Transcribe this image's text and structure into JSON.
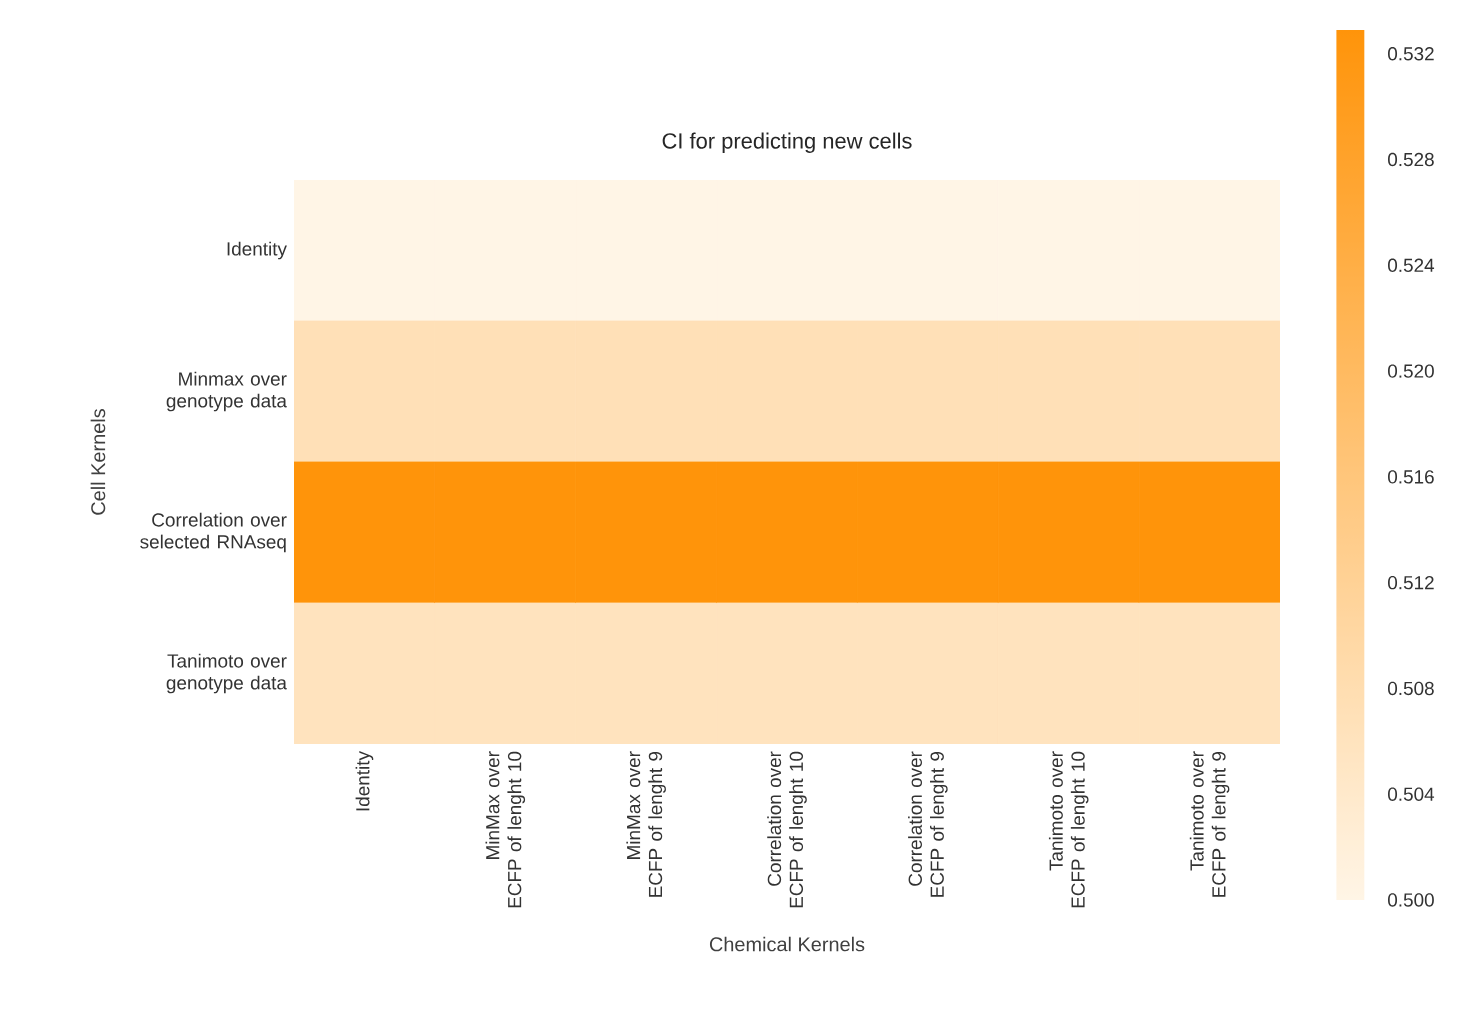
{
  "chart_data": {
    "type": "heatmap",
    "title": "CI for predicting new cells",
    "xlabel": "Chemical Kernels",
    "ylabel": "Cell Kernels",
    "categories": [
      "Identity",
      "MinMax over ECFP of lenght 10",
      "MinMax over ECFP of lenght 9",
      "Correlation over ECFP of lenght 10",
      "Correlation over ECFP of lenght 9",
      "Tanimoto over ECFP of lenght 10",
      "Tanimoto over ECFP of lenght 9"
    ],
    "y_categories": [
      "Identity",
      "Minmax over genotype data",
      "Correlation over selected RNAseq",
      "Tanimoto over genotype data"
    ],
    "cells": [
      [
        0.5,
        0.5,
        0.5,
        0.5,
        0.5,
        0.5,
        0.5
      ],
      [
        0.507,
        0.507,
        0.507,
        0.507,
        0.507,
        0.507,
        0.507
      ],
      [
        0.5329,
        0.5329,
        0.5329,
        0.5329,
        0.5329,
        0.5329,
        0.5329
      ],
      [
        0.506,
        0.506,
        0.506,
        0.506,
        0.506,
        0.506,
        0.506
      ]
    ],
    "clim": [
      0.5,
      0.5329
    ],
    "cticks": [
      {
        "value": 0.5,
        "label": "0.500"
      },
      {
        "value": 0.504,
        "label": "0.504"
      },
      {
        "value": 0.508,
        "label": "0.508"
      },
      {
        "value": 0.512,
        "label": "0.512"
      },
      {
        "value": 0.516,
        "label": "0.516"
      },
      {
        "value": 0.52,
        "label": "0.520"
      },
      {
        "value": 0.524,
        "label": "0.524"
      },
      {
        "value": 0.528,
        "label": "0.528"
      },
      {
        "value": 0.532,
        "label": "0.532"
      }
    ]
  }
}
